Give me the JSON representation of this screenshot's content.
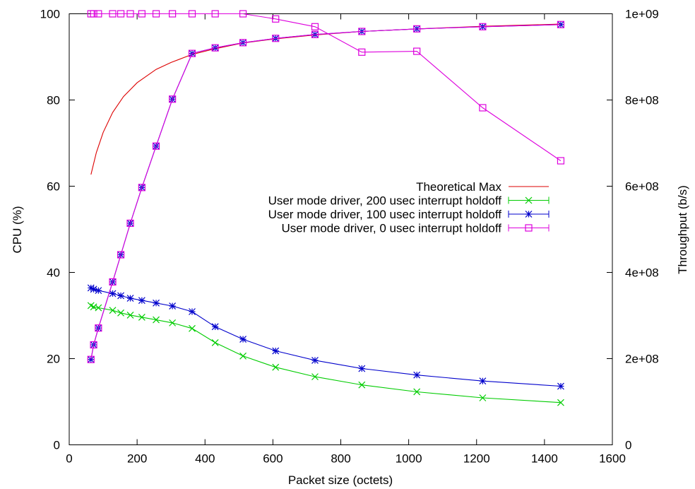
{
  "chart_data": {
    "type": "line",
    "xlabel": "Packet size (octets)",
    "ylabel": "CPU (%)",
    "y2label": "Throughput (b/s)",
    "xlim": [
      0,
      1600
    ],
    "ylim": [
      0,
      100
    ],
    "y2lim": [
      0,
      1000000000
    ],
    "x_ticks": [
      0,
      200,
      400,
      600,
      800,
      1000,
      1200,
      1400,
      1600
    ],
    "y_ticks": [
      0,
      20,
      40,
      60,
      80,
      100
    ],
    "y2_ticks": [
      "0",
      "2e+08",
      "4e+08",
      "6e+08",
      "8e+08",
      "1e+09"
    ],
    "y2_tick_values": [
      0,
      200000000,
      400000000,
      600000000,
      800000000,
      1000000000
    ],
    "grid": false,
    "legend_position": "right-middle",
    "series": [
      {
        "name": "Theoretical Max",
        "axis": "y2",
        "color": "#dd0000",
        "marker": "none",
        "curve": "theoretical",
        "x": [
          64,
          80,
          100,
          128,
          160,
          200,
          256,
          300,
          360,
          430,
          510,
          608,
          724,
          862,
          1024,
          1218,
          1448
        ],
        "values": [
          627000000,
          678000000,
          725000000,
          771000000,
          808000000,
          840000000,
          871000000,
          887000000,
          905000000,
          919000000,
          932000000,
          942000000,
          951000000,
          959000000,
          965000000,
          971000000,
          976000000
        ]
      },
      {
        "name": "User mode driver, 200 usec interrupt holdoff",
        "axis": "y",
        "color": "#00cc00",
        "marker": "x",
        "x": [
          64,
          72,
          86,
          128,
          152,
          180,
          214,
          256,
          304,
          362,
          430,
          512,
          608,
          724,
          862,
          1024,
          1218,
          1448
        ],
        "values": [
          32.3,
          32.0,
          31.8,
          31.2,
          30.6,
          30.1,
          29.6,
          29.0,
          28.3,
          27.0,
          23.7,
          20.6,
          18.0,
          15.8,
          13.9,
          12.3,
          10.9,
          9.8
        ]
      },
      {
        "name": "User mode driver, 100 usec interrupt holdoff",
        "axis": "y",
        "color": "#0000cc",
        "marker": "star",
        "x": [
          64,
          72,
          86,
          128,
          152,
          180,
          214,
          256,
          304,
          362,
          430,
          512,
          608,
          724,
          862,
          1024,
          1218,
          1448
        ],
        "values": [
          36.4,
          36.1,
          35.8,
          35.1,
          34.6,
          34.0,
          33.5,
          32.9,
          32.2,
          30.9,
          27.4,
          24.5,
          21.8,
          19.6,
          17.7,
          16.2,
          14.8,
          13.6
        ]
      },
      {
        "name": "User mode driver, 0 usec interrupt holdoff",
        "axis": "y",
        "color": "#dd00dd",
        "marker": "square",
        "x": [
          64,
          72,
          86,
          128,
          152,
          180,
          214,
          256,
          304,
          362,
          430,
          512,
          608,
          724,
          862,
          1024,
          1218,
          1448
        ],
        "values": [
          100,
          100,
          100,
          100,
          100,
          100,
          100,
          100,
          100,
          100,
          100,
          100,
          98.8,
          97.0,
          91.1,
          91.3,
          78.2,
          65.9
        ]
      },
      {
        "name": "",
        "axis": "y2",
        "color": "#0000cc",
        "marker": "star",
        "x": [
          64,
          72,
          86,
          128,
          152,
          180,
          214,
          256,
          304,
          362,
          430,
          512,
          608,
          724,
          862,
          1024,
          1218,
          1448
        ],
        "values": [
          198000000,
          232000000,
          271000000,
          378000000,
          441000000,
          514000000,
          597000000,
          693000000,
          802000000,
          908000000,
          921000000,
          933000000,
          943000000,
          952000000,
          959000000,
          965000000,
          970000000,
          975000000
        ]
      },
      {
        "name": "",
        "axis": "y2",
        "color": "#dd00dd",
        "marker": "square",
        "x": [
          64,
          72,
          86,
          128,
          152,
          180,
          214,
          256,
          304,
          362,
          430,
          512,
          608,
          724,
          862,
          1024,
          1218,
          1448
        ],
        "values": [
          198000000,
          232000000,
          271000000,
          378000000,
          441000000,
          514000000,
          597000000,
          693000000,
          802000000,
          908000000,
          921000000,
          933000000,
          943000000,
          952000000,
          959000000,
          965000000,
          970000000,
          975000000
        ]
      }
    ]
  }
}
